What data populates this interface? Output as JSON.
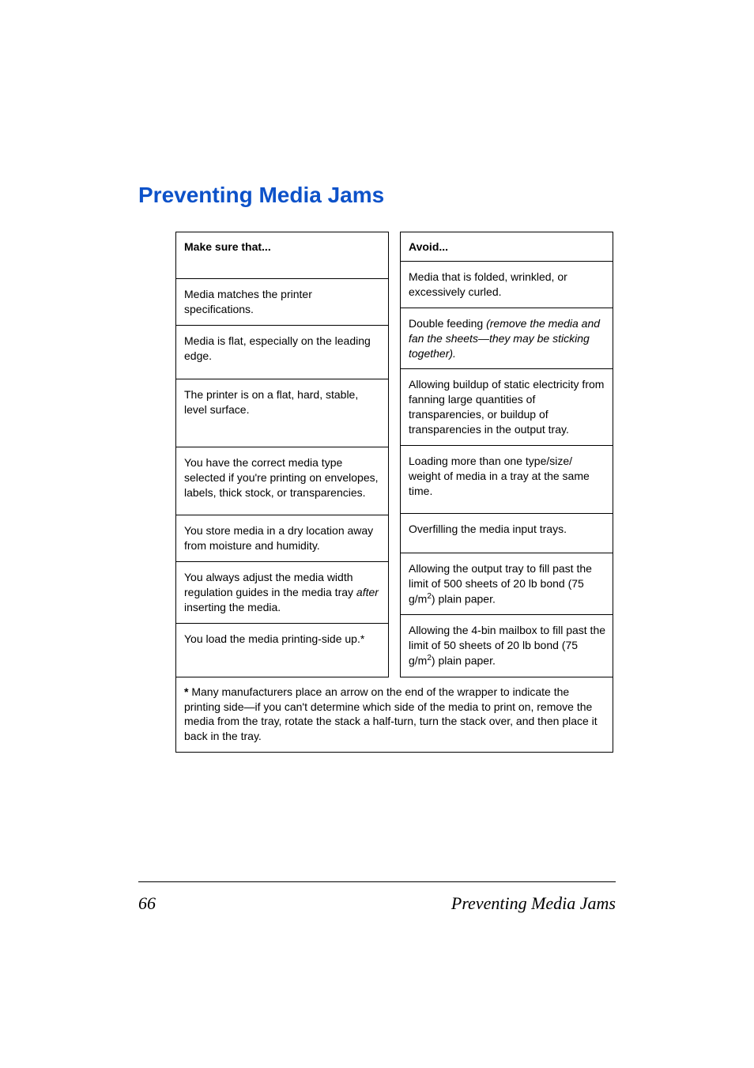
{
  "title": "Preventing Media Jams",
  "left": {
    "header": "Make sure that...",
    "rows": [
      "Media matches the printer specifications.",
      "Media is flat, especially on the leading edge.",
      "The printer is on a flat, hard, stable, level surface.",
      "You have the correct media type selected if you're printing on envelopes, labels, thick stock, or transparencies.",
      "You store media in a dry location away from moisture and humidity.",
      "",
      "You load the media printing-side up.*"
    ],
    "row6_prefix": "You always adjust the media width regulation guides in the media tray ",
    "row6_italic": "after",
    "row6_suffix": " inserting the media."
  },
  "right": {
    "header": "Avoid...",
    "rows": [
      "Media that is folded, wrinkled, or excessively curled.",
      "",
      "Allowing buildup of static electricity from fanning large quantities of transparencies, or buildup of transparencies in the output tray.",
      "Loading more than one type/size/ weight of media in a tray at the same time.",
      "Overfilling the media input trays.",
      "",
      ""
    ],
    "row2_prefix": "Double feeding ",
    "row2_italic": "(remove the media and fan the sheets—they may be sticking together).",
    "row6_prefix": "Allowing the output tray to fill past the limit of 500 sheets of 20 lb bond (75 g/m",
    "row6_sup": "2",
    "row6_suffix": ") plain paper.",
    "row7_prefix": "Allowing the 4-bin mailbox to fill past the limit of 50 sheets of 20 lb bond (75 g/m",
    "row7_sup": "2",
    "row7_suffix": ") plain paper."
  },
  "footnote": {
    "star": "*",
    "text": " Many manufacturers place an arrow on the end of the wrapper to indicate the printing side—if you can't determine which side of the media to print on, remove the media from the tray, rotate the stack a half-turn, turn the stack over, and then place it back in the tray."
  },
  "footer": {
    "page": "66",
    "title": "Preventing Media Jams"
  }
}
